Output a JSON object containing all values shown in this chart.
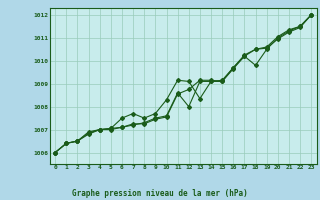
{
  "title": "Graphe pression niveau de la mer (hPa)",
  "bg_color": "#c8ecec",
  "plot_bg_color": "#c8ecec",
  "outer_bg": "#b0d8e8",
  "grid_color": "#99ccbb",
  "line_color": "#1a5c1a",
  "x_labels": [
    "0",
    "1",
    "2",
    "3",
    "4",
    "5",
    "6",
    "7",
    "8",
    "9",
    "10",
    "11",
    "12",
    "13",
    "14",
    "15",
    "16",
    "17",
    "18",
    "19",
    "20",
    "21",
    "22",
    "23"
  ],
  "xlim": [
    -0.5,
    23.5
  ],
  "ylim": [
    1005.5,
    1012.3
  ],
  "yticks": [
    1006,
    1007,
    1008,
    1009,
    1010,
    1011,
    1012
  ],
  "series1": [
    1006.0,
    1006.4,
    1006.5,
    1006.8,
    1007.0,
    1007.0,
    1007.1,
    1007.2,
    1007.3,
    1007.5,
    1007.6,
    1008.6,
    1008.0,
    1009.1,
    1009.1,
    1009.1,
    1009.7,
    1010.2,
    1009.8,
    1010.5,
    1011.0,
    1011.3,
    1011.5,
    1012.0
  ],
  "series2": [
    1006.0,
    1006.4,
    1006.5,
    1006.9,
    1007.0,
    1007.05,
    1007.5,
    1007.7,
    1007.5,
    1007.7,
    1008.3,
    1009.15,
    1009.1,
    1008.35,
    1009.1,
    1009.15,
    1009.7,
    1010.25,
    1010.5,
    1010.6,
    1011.05,
    1011.35,
    1011.5,
    1012.0
  ],
  "series3": [
    1006.0,
    1006.4,
    1006.5,
    1006.85,
    1007.0,
    1007.05,
    1007.1,
    1007.25,
    1007.25,
    1007.45,
    1007.55,
    1008.55,
    1008.75,
    1009.15,
    1009.15,
    1009.1,
    1009.65,
    1010.2,
    1010.5,
    1010.55,
    1010.95,
    1011.25,
    1011.45,
    1012.0
  ]
}
